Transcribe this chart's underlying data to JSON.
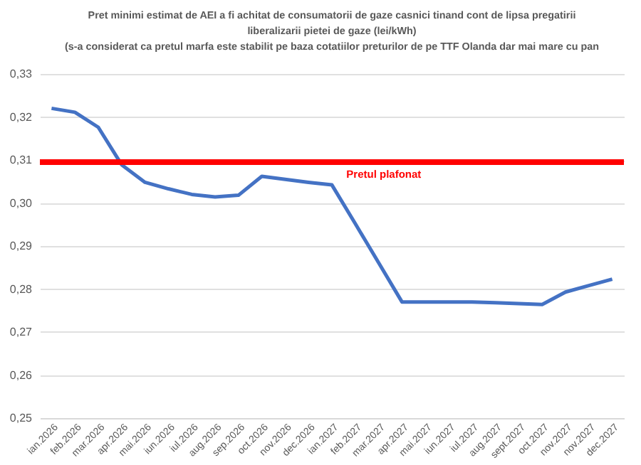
{
  "chart_data": {
    "type": "line",
    "title": [
      "Pret minimi estimat de AEI a fi achitat de consumatorii de gaze casnici tinand cont de lipsa pregatirii",
      "liberalizarii pietei de gaze (lei/kWh)",
      "(s-a considerat ca pretul marfa este stabilit  pe baza cotatiilor preturilor de pe TTF Olanda dar mai mare cu pan"
    ],
    "categories": [
      "ian.2026",
      "feb.2026",
      "mar.2026",
      "apr.2026",
      "mai.2026",
      "iun.2026",
      "iul.2026",
      "aug.2026",
      "sep.2026",
      "oct.2026",
      "nov.2026",
      "dec.2026",
      "ian.2027",
      "feb.2027",
      "mar.2027",
      "apr.2027",
      "mai.2027",
      "iun.2027",
      "iul.2027",
      "aug.2027",
      "sept.2027",
      "oct.2027",
      "nov.2027",
      "nov.2027",
      "dec.2027"
    ],
    "series": [
      {
        "color": "#4472c4",
        "values": [
          0.322,
          0.3211,
          0.3176,
          0.3089,
          0.3048,
          0.3033,
          0.302,
          0.3014,
          0.3018,
          0.3062,
          0.3055,
          0.3048,
          0.3042,
          0.2952,
          0.2861,
          0.277,
          0.277,
          0.277,
          0.277,
          0.2768,
          0.2766,
          0.2764,
          0.2793,
          0.2808,
          0.2823
        ]
      }
    ],
    "ylim": [
      0.25,
      0.33
    ],
    "yticks": [
      {
        "value": 0.25,
        "label": "0,25"
      },
      {
        "value": 0.26,
        "label": "0,26"
      },
      {
        "value": 0.27,
        "label": "0,27"
      },
      {
        "value": 0.28,
        "label": "0,28"
      },
      {
        "value": 0.29,
        "label": "0,29"
      },
      {
        "value": 0.3,
        "label": "0,30"
      },
      {
        "value": 0.31,
        "label": "0,31"
      },
      {
        "value": 0.32,
        "label": "0,32"
      },
      {
        "value": 0.33,
        "label": "0,33"
      }
    ],
    "grid": "y",
    "marker": "none",
    "line_style": "solid",
    "ref_lines": [
      {
        "axis": "y",
        "value": 0.3095,
        "label": "Pretul plafonat",
        "color": "#ff0000"
      }
    ]
  }
}
